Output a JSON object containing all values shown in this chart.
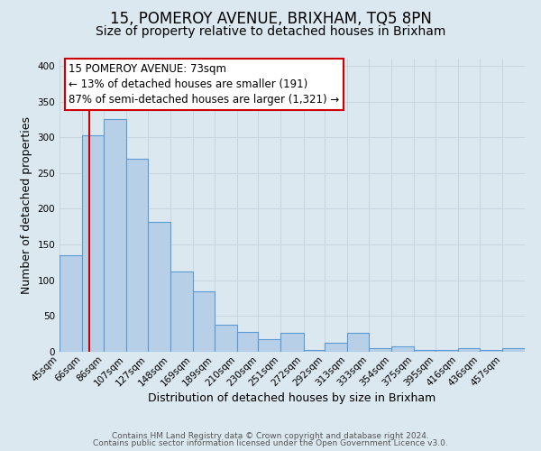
{
  "title": "15, POMEROY AVENUE, BRIXHAM, TQ5 8PN",
  "subtitle": "Size of property relative to detached houses in Brixham",
  "xlabel": "Distribution of detached houses by size in Brixham",
  "ylabel": "Number of detached properties",
  "bar_edges": [
    45,
    66,
    86,
    107,
    127,
    148,
    169,
    189,
    210,
    230,
    251,
    272,
    292,
    313,
    333,
    354,
    375,
    395,
    416,
    436,
    457
  ],
  "bar_heights": [
    135,
    303,
    325,
    270,
    182,
    112,
    84,
    38,
    28,
    18,
    26,
    3,
    12,
    26,
    5,
    8,
    3,
    2,
    5,
    2,
    5
  ],
  "bar_color": "#b8cfe8",
  "bar_edge_color": "#5b9bd5",
  "bar_linewidth": 0.8,
  "grid_color": "#c8d4e0",
  "bg_color": "#dce8f0",
  "red_line_x": 73,
  "red_line_color": "#cc0000",
  "ylim": [
    0,
    410
  ],
  "annotation_line1": "15 POMEROY AVENUE: 73sqm",
  "annotation_line2": "← 13% of detached houses are smaller (191)",
  "annotation_line3": "87% of semi-detached houses are larger (1,321) →",
  "footer_line1": "Contains HM Land Registry data © Crown copyright and database right 2024.",
  "footer_line2": "Contains public sector information licensed under the Open Government Licence v3.0.",
  "title_fontsize": 12,
  "subtitle_fontsize": 10,
  "axis_label_fontsize": 9,
  "tick_fontsize": 7.5,
  "annotation_fontsize": 8.5,
  "footer_fontsize": 6.5
}
